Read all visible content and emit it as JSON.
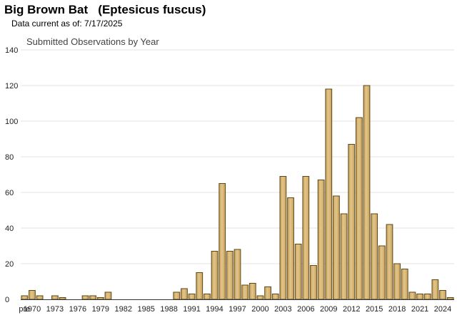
{
  "header": {
    "title": "Big Brown Bat   (Eptesicus fuscus)",
    "subtitle": "Data current as of: 7/17/2025"
  },
  "colors": {
    "bar_fill": "#c9a35c",
    "bar_highlight": "#e2c58a",
    "bar_stroke": "#5e4615",
    "grid": "#e3e3e3",
    "axis": "#333333"
  },
  "chart_data": {
    "type": "bar",
    "title": "Submitted Observations by Year",
    "xlabel": "",
    "ylabel": "",
    "ylim": [
      0,
      140
    ],
    "yticks": [
      0,
      20,
      40,
      60,
      80,
      100,
      120,
      140
    ],
    "grid": true,
    "categories": [
      "pre",
      "1970",
      "1971",
      "1972",
      "1973",
      "1974",
      "1975",
      "1976",
      "1977",
      "1978",
      "1979",
      "1980",
      "1981",
      "1982",
      "1983",
      "1984",
      "1985",
      "1986",
      "1987",
      "1988",
      "1989",
      "1990",
      "1991",
      "1992",
      "1993",
      "1994",
      "1995",
      "1996",
      "1997",
      "1998",
      "1999",
      "2000",
      "2001",
      "2002",
      "2003",
      "2004",
      "2005",
      "2006",
      "2007",
      "2008",
      "2009",
      "2010",
      "2011",
      "2012",
      "2013",
      "2014",
      "2015",
      "2016",
      "2017",
      "2018",
      "2019",
      "2020",
      "2021",
      "2022",
      "2023",
      "2024",
      "2025"
    ],
    "x_tick_labels": [
      "pre",
      "1970",
      "1973",
      "1976",
      "1979",
      "1982",
      "1985",
      "1988",
      "1991",
      "1994",
      "1997",
      "2000",
      "2003",
      "2006",
      "2009",
      "2012",
      "2015",
      "2018",
      "2021",
      "2024"
    ],
    "values": [
      2,
      5,
      2,
      0,
      2,
      1,
      0,
      0,
      2,
      2,
      1,
      4,
      0,
      0,
      0,
      0,
      0,
      0,
      0,
      0,
      4,
      6,
      3,
      15,
      3,
      27,
      65,
      27,
      28,
      8,
      9,
      2,
      7,
      3,
      69,
      57,
      31,
      69,
      19,
      67,
      118,
      58,
      48,
      87,
      102,
      120,
      48,
      30,
      42,
      20,
      17,
      4,
      3,
      3,
      11,
      5,
      1
    ]
  }
}
